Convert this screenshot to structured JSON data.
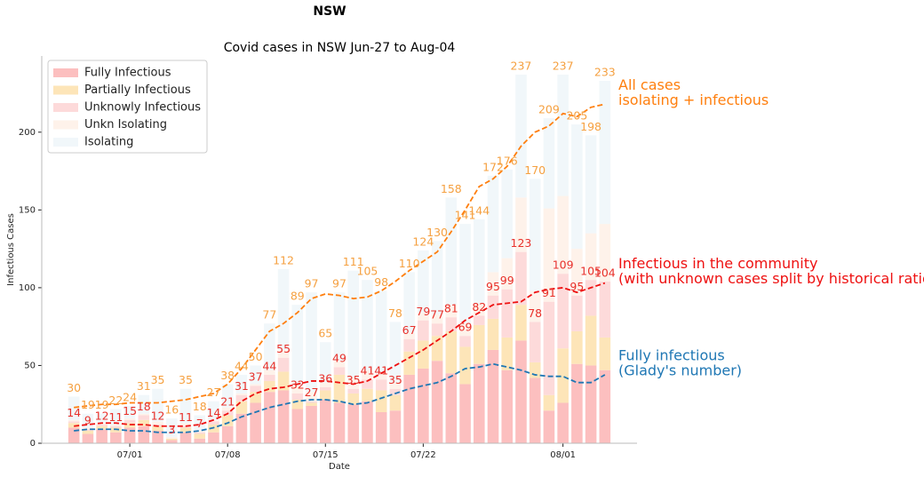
{
  "chart_data": {
    "type": "bar",
    "stacked": true,
    "suptitle": "NSW",
    "title": "Covid cases in NSW Jun-27 to Aug-04",
    "xlabel": "Date",
    "ylabel": "Infectious Cases",
    "legend": "upper left",
    "ylim": [
      0,
      249
    ],
    "yticks": [
      0,
      50,
      100,
      150,
      200
    ],
    "categories": [
      null,
      null,
      null,
      null,
      "07/01",
      null,
      null,
      null,
      null,
      null,
      null,
      "07/08",
      null,
      null,
      null,
      null,
      null,
      null,
      "07/15",
      null,
      null,
      null,
      null,
      null,
      null,
      "07/22",
      null,
      null,
      null,
      null,
      null,
      null,
      null,
      null,
      null,
      "08/01",
      null,
      null,
      null
    ],
    "series": [
      {
        "name": "Fully Infectious",
        "color": "#fcbfbf",
        "values": [
          10,
          6,
          9,
          7,
          10,
          11,
          8,
          2,
          7,
          3,
          7,
          11,
          19,
          26,
          33,
          34,
          22,
          24,
          28,
          26,
          25,
          27,
          20,
          21,
          44,
          48,
          53,
          45,
          38,
          51,
          60,
          47,
          66,
          42,
          21,
          26,
          51,
          50,
          47
        ]
      },
      {
        "name": "Partially Infectious",
        "color": "#fde5b8",
        "values": [
          3,
          2,
          2,
          3,
          3,
          4,
          3,
          1,
          3,
          3,
          5,
          7,
          8,
          7,
          7,
          12,
          6,
          2,
          6,
          18,
          7,
          8,
          14,
          10,
          15,
          18,
          16,
          27,
          24,
          25,
          20,
          21,
          23,
          10,
          10,
          35,
          21,
          32,
          21
        ]
      },
      {
        "name": "Unknowly Infectious",
        "color": "#fddada",
        "values": [
          1,
          1,
          1,
          1,
          2,
          3,
          1,
          0,
          1,
          1,
          2,
          3,
          4,
          4,
          4,
          9,
          4,
          1,
          2,
          5,
          3,
          6,
          7,
          4,
          8,
          13,
          8,
          9,
          7,
          6,
          15,
          31,
          34,
          26,
          60,
          48,
          23,
          23,
          36
        ]
      },
      {
        "name": "Unkn Isolating",
        "color": "#fef2ea",
        "values": [
          1,
          1,
          1,
          1,
          1,
          1,
          2,
          1,
          2,
          1,
          1,
          2,
          1,
          1,
          3,
          5,
          5,
          6,
          3,
          4,
          7,
          6,
          5,
          4,
          4,
          5,
          6,
          8,
          8,
          8,
          15,
          20,
          35,
          20,
          60,
          50,
          30,
          30,
          37
        ]
      },
      {
        "name": "Isolating",
        "color": "#f1f7fa",
        "values": [
          15,
          9,
          6,
          10,
          8,
          12,
          21,
          12,
          22,
          10,
          12,
          15,
          12,
          12,
          30,
          52,
          52,
          64,
          26,
          44,
          69,
          58,
          52,
          39,
          39,
          40,
          47,
          69,
          64,
          54,
          62,
          57,
          79,
          72,
          58,
          78,
          80,
          63,
          92
        ]
      }
    ],
    "total_labels": {
      "color": "#f5a040",
      "values": [
        30,
        19,
        19,
        22,
        24,
        31,
        35,
        16,
        35,
        18,
        27,
        38,
        44,
        50,
        77,
        112,
        89,
        97,
        65,
        97,
        111,
        105,
        98,
        78,
        110,
        124,
        130,
        158,
        141,
        144,
        172,
        176,
        237,
        170,
        209,
        237,
        205,
        198,
        233
      ]
    },
    "community_labels": {
      "color": "#e8302a",
      "values": [
        14,
        9,
        12,
        11,
        15,
        18,
        12,
        3,
        11,
        7,
        14,
        21,
        31,
        37,
        44,
        55,
        32,
        27,
        36,
        49,
        35,
        41,
        41,
        35,
        67,
        79,
        77,
        81,
        69,
        82,
        95,
        99,
        123,
        78,
        91,
        109,
        95,
        105,
        104
      ]
    },
    "lines": [
      {
        "color": "#ff7f0e",
        "annotation": [
          "All cases",
          "isolating + infectious"
        ],
        "values": [
          23,
          24,
          25,
          25,
          26,
          26,
          26,
          27,
          28,
          30,
          32,
          38,
          48,
          60,
          72,
          77,
          84,
          93,
          96,
          95,
          93,
          94,
          98,
          104,
          111,
          117,
          123,
          136,
          150,
          165,
          170,
          178,
          191,
          200,
          204,
          212,
          210,
          216,
          218
        ]
      },
      {
        "color": "#ee1111",
        "annotation": [
          "Infectious in the community",
          "(with unknown cases split by historical ratio)"
        ],
        "values": [
          11,
          12,
          13,
          13,
          12,
          12,
          11,
          11,
          11,
          12,
          15,
          19,
          27,
          32,
          35,
          36,
          38,
          40,
          40,
          39,
          38,
          40,
          45,
          50,
          55,
          60,
          66,
          72,
          79,
          84,
          89,
          90,
          91,
          97,
          99,
          100,
          97,
          100,
          103
        ]
      },
      {
        "color": "#1f77b4",
        "annotation": [
          "Fully infectious",
          "(Glady's number)"
        ],
        "values": [
          8,
          9,
          9,
          9,
          8,
          8,
          7,
          7,
          7,
          8,
          10,
          13,
          17,
          20,
          23,
          25,
          27,
          28,
          28,
          27,
          25,
          26,
          29,
          32,
          35,
          37,
          39,
          43,
          48,
          49,
          51,
          49,
          47,
          44,
          43,
          43,
          39,
          39,
          44
        ]
      }
    ]
  }
}
